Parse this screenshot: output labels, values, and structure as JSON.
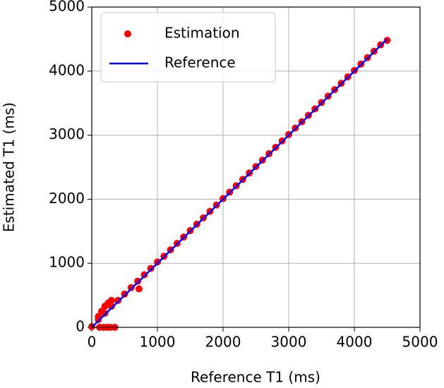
{
  "chart_data": {
    "type": "scatter",
    "xlabel": "Reference T1 (ms)",
    "ylabel": "Estimated T1 (ms)",
    "xlim": [
      0,
      5000
    ],
    "ylim": [
      0,
      5000
    ],
    "xticks": [
      0,
      1000,
      2000,
      3000,
      4000,
      5000
    ],
    "yticks": [
      0,
      1000,
      2000,
      3000,
      4000,
      5000
    ],
    "grid": true,
    "legend": "upper left",
    "series": [
      {
        "name": "Estimation",
        "type": "scatter",
        "color": "#ff0000",
        "x": [
          0,
          100,
          200,
          300,
          400,
          500,
          600,
          700,
          800,
          900,
          1000,
          1100,
          1200,
          1300,
          1400,
          1500,
          1600,
          1700,
          1800,
          1900,
          2000,
          2100,
          2200,
          2300,
          2400,
          2500,
          2600,
          2700,
          2800,
          2900,
          3000,
          3100,
          3200,
          3300,
          3400,
          3500,
          3600,
          3700,
          3800,
          3900,
          4000,
          4100,
          4200,
          4300,
          4400,
          4500,
          120,
          180,
          230,
          280,
          350,
          150,
          200,
          250,
          300,
          720,
          100
        ],
        "values": [
          10,
          120,
          220,
          330,
          420,
          520,
          620,
          720,
          820,
          920,
          1020,
          1110,
          1210,
          1310,
          1410,
          1510,
          1610,
          1710,
          1810,
          1910,
          2010,
          2110,
          2210,
          2310,
          2410,
          2510,
          2610,
          2710,
          2810,
          2910,
          3010,
          3110,
          3210,
          3310,
          3410,
          3510,
          3610,
          3710,
          3810,
          3910,
          4010,
          4110,
          4210,
          4310,
          4410,
          4480,
          0,
          0,
          0,
          0,
          0,
          250,
          330,
          380,
          420,
          600,
          170
        ]
      },
      {
        "name": "Reference",
        "type": "line",
        "color": "#0000ff",
        "x": [
          0,
          4500
        ],
        "values": [
          0,
          4500
        ]
      }
    ]
  }
}
